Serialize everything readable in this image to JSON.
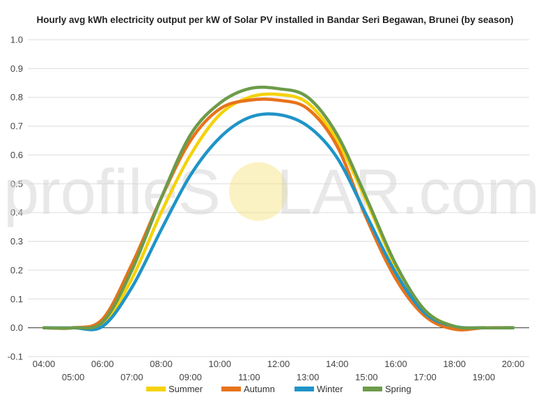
{
  "chart_data": {
    "type": "line",
    "title": "Hourly avg kWh electricity output per kW of Solar PV installed in Bandar Seri Begawan, Brunei (by season)",
    "xlabel": "",
    "ylabel": "",
    "x": [
      "04:00",
      "05:00",
      "06:00",
      "07:00",
      "08:00",
      "09:00",
      "10:00",
      "11:00",
      "12:00",
      "13:00",
      "14:00",
      "15:00",
      "16:00",
      "17:00",
      "18:00",
      "19:00",
      "20:00"
    ],
    "ylim": [
      -0.1,
      1.0
    ],
    "yticks": [
      "-0.1",
      "0.0",
      "0.1",
      "0.2",
      "0.3",
      "0.4",
      "0.5",
      "0.6",
      "0.7",
      "0.8",
      "0.9",
      "1.0"
    ],
    "grid": true,
    "legend_position": "bottom",
    "series": [
      {
        "name": "Summer",
        "color": "#f5d20a",
        "values": [
          0.0,
          0.0,
          0.01,
          0.17,
          0.4,
          0.6,
          0.74,
          0.8,
          0.81,
          0.78,
          0.65,
          0.44,
          0.21,
          0.06,
          0.005,
          0.0,
          0.0
        ]
      },
      {
        "name": "Autumn",
        "color": "#e8731a",
        "values": [
          0.0,
          0.0,
          0.03,
          0.22,
          0.45,
          0.65,
          0.76,
          0.79,
          0.79,
          0.76,
          0.63,
          0.38,
          0.17,
          0.04,
          -0.005,
          0.0,
          0.0
        ]
      },
      {
        "name": "Winter",
        "color": "#1f94c8",
        "values": [
          0.0,
          0.0,
          0.005,
          0.14,
          0.34,
          0.53,
          0.66,
          0.73,
          0.74,
          0.7,
          0.59,
          0.39,
          0.19,
          0.05,
          0.005,
          0.0,
          0.0
        ]
      },
      {
        "name": "Spring",
        "color": "#6d9b4a",
        "values": [
          0.0,
          0.0,
          0.02,
          0.2,
          0.45,
          0.67,
          0.78,
          0.83,
          0.83,
          0.8,
          0.67,
          0.45,
          0.22,
          0.06,
          0.005,
          0.0,
          0.0
        ]
      }
    ],
    "watermark": {
      "part1": "profileS",
      "part2": "LAR.com"
    }
  }
}
